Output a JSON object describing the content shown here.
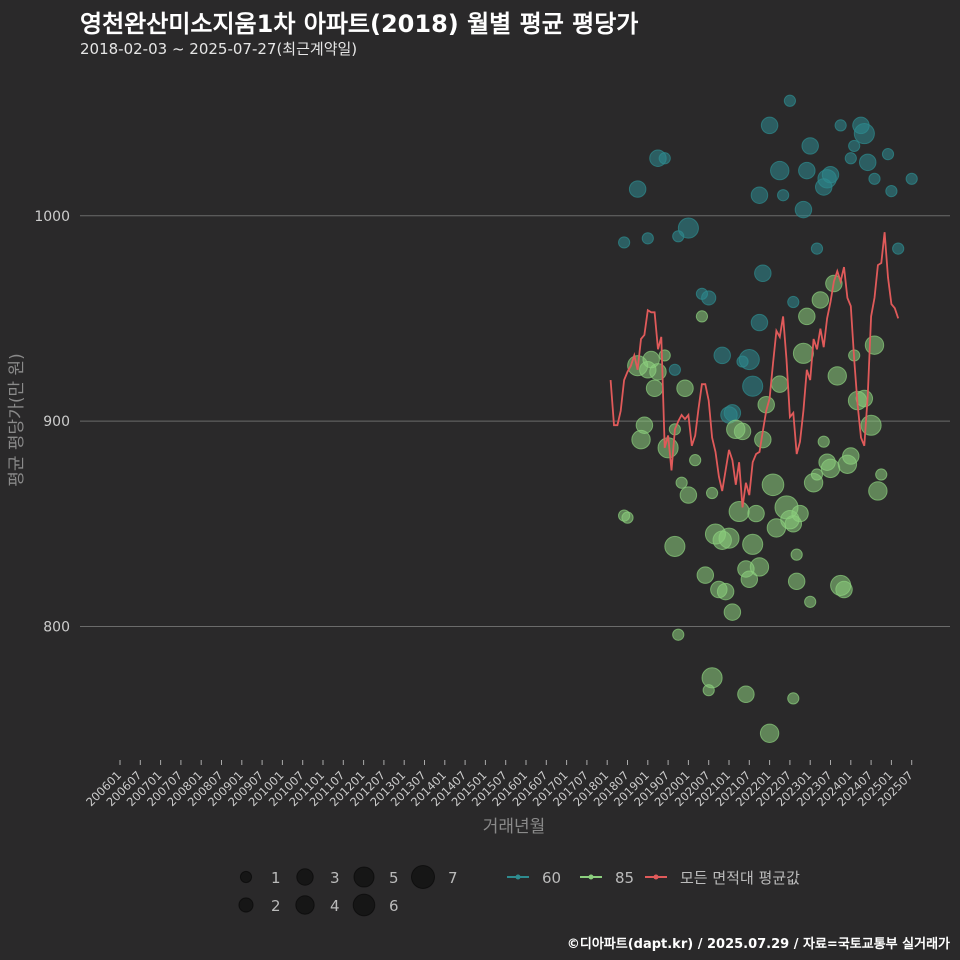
{
  "header": {
    "title": "영천완산미소지움1차 아파트(2018) 월별 평균 평당가",
    "subtitle": "2018-02-03 ~ 2025-07-27(최근계약일)"
  },
  "footer": {
    "caption": "©디아파트(dapt.kr) / 2025.07.29 / 자료=국토교통부 실거래가"
  },
  "colors": {
    "background": "#2a292a",
    "grid": "#6b6b6b",
    "area60": "#2e8b8f",
    "area85": "#8ccf7e",
    "avg_line": "#e05a5a",
    "size_legend": "#111111"
  },
  "chart_data": {
    "type": "scatter",
    "title": "영천완산미소지움1차 아파트(2018) 월별 평균 평당가",
    "xlabel": "거래년월",
    "ylabel": "평균 평당가(만 원)",
    "x_ticks": [
      "200601",
      "200607",
      "200701",
      "200707",
      "200801",
      "200807",
      "200901",
      "200907",
      "201001",
      "201007",
      "201101",
      "201107",
      "201201",
      "201207",
      "201301",
      "201307",
      "201401",
      "201407",
      "201501",
      "201507",
      "201601",
      "201607",
      "201701",
      "201707",
      "201801",
      "201807",
      "201901",
      "201907",
      "202001",
      "202007",
      "202101",
      "202107",
      "202201",
      "202207",
      "202301",
      "202307",
      "202401",
      "202407",
      "202501",
      "202507"
    ],
    "y_ticks": [
      800,
      900,
      1000
    ],
    "ylim": [
      735,
      1070
    ],
    "grid": true,
    "legend": {
      "size_title": "",
      "sizes": [
        "1",
        "2",
        "3",
        "4",
        "5",
        "6",
        "7"
      ],
      "series_labels": [
        "60",
        "85",
        "모든 면적대 평균값"
      ]
    },
    "series": [
      {
        "name": "60",
        "kind": "points",
        "points": [
          [
            "2018-06",
            987,
            1
          ],
          [
            "2018-10",
            1013,
            3
          ],
          [
            "2019-01",
            989,
            1
          ],
          [
            "2019-04",
            1028,
            3
          ],
          [
            "2019-06",
            1028,
            1
          ],
          [
            "2019-10",
            990,
            1
          ],
          [
            "2020-01",
            994,
            5
          ],
          [
            "2020-05",
            962,
            1
          ],
          [
            "2020-07",
            960,
            2
          ],
          [
            "2020-11",
            932,
            3
          ],
          [
            "2021-01",
            903,
            3
          ],
          [
            "2021-02",
            904,
            3
          ],
          [
            "2021-05",
            929,
            1
          ],
          [
            "2021-07",
            930,
            5
          ],
          [
            "2021-08",
            917,
            5
          ],
          [
            "2021-10",
            948,
            3
          ],
          [
            "2021-11",
            972,
            3
          ],
          [
            "2021-10",
            1010,
            3
          ],
          [
            "2022-01",
            1044,
            3
          ],
          [
            "2022-04",
            1022,
            4
          ],
          [
            "2022-05",
            1010,
            1
          ],
          [
            "2022-08",
            958,
            1
          ],
          [
            "2022-11",
            1003,
            3
          ],
          [
            "2022-12",
            1022,
            3
          ],
          [
            "2023-01",
            1034,
            3
          ],
          [
            "2023-03",
            984,
            1
          ],
          [
            "2023-05",
            1014,
            3
          ],
          [
            "2023-06",
            1018,
            4
          ],
          [
            "2023-07",
            1020,
            3
          ],
          [
            "2023-10",
            1044,
            1
          ],
          [
            "2024-01",
            1028,
            1
          ],
          [
            "2024-02",
            1034,
            1
          ],
          [
            "2024-04",
            1044,
            3
          ],
          [
            "2024-05",
            1040,
            5
          ],
          [
            "2024-06",
            1026,
            3
          ],
          [
            "2024-08",
            1018,
            1
          ],
          [
            "2024-12",
            1030,
            1
          ],
          [
            "2025-01",
            1012,
            1
          ],
          [
            "2025-03",
            984,
            1
          ],
          [
            "2025-07",
            1018,
            1
          ],
          [
            "2022-07",
            1056,
            1
          ],
          [
            "2019-09",
            925,
            1
          ]
        ]
      },
      {
        "name": "85",
        "kind": "points",
        "points": [
          [
            "2018-06",
            854,
            1
          ],
          [
            "2018-07",
            853,
            1
          ],
          [
            "2018-10",
            927,
            5
          ],
          [
            "2018-11",
            891,
            4
          ],
          [
            "2018-12",
            898,
            3
          ],
          [
            "2019-01",
            925,
            3
          ],
          [
            "2019-02",
            930,
            3
          ],
          [
            "2019-03",
            916,
            3
          ],
          [
            "2019-04",
            924,
            3
          ],
          [
            "2019-06",
            932,
            1
          ],
          [
            "2019-07",
            887,
            5
          ],
          [
            "2019-09",
            839,
            5
          ],
          [
            "2019-10",
            796,
            1
          ],
          [
            "2019-11",
            870,
            1
          ],
          [
            "2019-12",
            916,
            3
          ],
          [
            "2020-01",
            864,
            3
          ],
          [
            "2020-03",
            881,
            1
          ],
          [
            "2020-05",
            951,
            1
          ],
          [
            "2020-06",
            825,
            3
          ],
          [
            "2020-08",
            865,
            1
          ],
          [
            "2020-09",
            845,
            5
          ],
          [
            "2020-10",
            818,
            3
          ],
          [
            "2020-11",
            842,
            4
          ],
          [
            "2020-12",
            817,
            3
          ],
          [
            "2021-01",
            843,
            5
          ],
          [
            "2021-02",
            807,
            3
          ],
          [
            "2021-03",
            896,
            4
          ],
          [
            "2021-04",
            856,
            5
          ],
          [
            "2021-05",
            895,
            3
          ],
          [
            "2021-06",
            828,
            3
          ],
          [
            "2021-07",
            823,
            3
          ],
          [
            "2021-08",
            840,
            5
          ],
          [
            "2021-09",
            855,
            3
          ],
          [
            "2021-10",
            829,
            4
          ],
          [
            "2021-11",
            891,
            3
          ],
          [
            "2021-12",
            908,
            3
          ],
          [
            "2022-02",
            869,
            6
          ],
          [
            "2022-03",
            848,
            4
          ],
          [
            "2022-04",
            918,
            3
          ],
          [
            "2022-06",
            858,
            7
          ],
          [
            "2022-07",
            852,
            4
          ],
          [
            "2022-08",
            850,
            3
          ],
          [
            "2022-09",
            822,
            3
          ],
          [
            "2022-10",
            855,
            3
          ],
          [
            "2022-11",
            933,
            5
          ],
          [
            "2022-12",
            951,
            3
          ],
          [
            "2023-01",
            812,
            1
          ],
          [
            "2023-02",
            870,
            4
          ],
          [
            "2023-03",
            874,
            1
          ],
          [
            "2023-04",
            959,
            3
          ],
          [
            "2023-05",
            890,
            1
          ],
          [
            "2023-06",
            880,
            3
          ],
          [
            "2023-07",
            877,
            4
          ],
          [
            "2023-08",
            967,
            3
          ],
          [
            "2023-09",
            922,
            4
          ],
          [
            "2023-10",
            820,
            5
          ],
          [
            "2023-11",
            818,
            3
          ],
          [
            "2023-12",
            879,
            4
          ],
          [
            "2024-01",
            883,
            3
          ],
          [
            "2024-02",
            932,
            1
          ],
          [
            "2024-03",
            910,
            4
          ],
          [
            "2024-05",
            911,
            3
          ],
          [
            "2024-07",
            898,
            5
          ],
          [
            "2024-08",
            937,
            4
          ],
          [
            "2024-09",
            866,
            4
          ],
          [
            "2024-10",
            874,
            1
          ],
          [
            "2020-07",
            769,
            1
          ],
          [
            "2020-08",
            775,
            5
          ],
          [
            "2021-06",
            767,
            3
          ],
          [
            "2022-01",
            748,
            4
          ],
          [
            "2022-08",
            765,
            1
          ],
          [
            "2022-09",
            835,
            1
          ],
          [
            "2019-09",
            896,
            1
          ]
        ]
      },
      {
        "name": "모든 면적대 평균값",
        "kind": "line",
        "points": [
          [
            "2018-02",
            920
          ],
          [
            "2018-03",
            898
          ],
          [
            "2018-04",
            898
          ],
          [
            "2018-05",
            905
          ],
          [
            "2018-06",
            920
          ],
          [
            "2018-07",
            924
          ],
          [
            "2018-08",
            927
          ],
          [
            "2018-09",
            932
          ],
          [
            "2018-10",
            925
          ],
          [
            "2018-11",
            940
          ],
          [
            "2018-12",
            942
          ],
          [
            "2019-01",
            954
          ],
          [
            "2019-02",
            953
          ],
          [
            "2019-03",
            953
          ],
          [
            "2019-04",
            935
          ],
          [
            "2019-05",
            941
          ],
          [
            "2019-06",
            887
          ],
          [
            "2019-07",
            893
          ],
          [
            "2019-08",
            876
          ],
          [
            "2019-09",
            896
          ],
          [
            "2019-10",
            900
          ],
          [
            "2019-11",
            903
          ],
          [
            "2019-12",
            901
          ],
          [
            "2020-01",
            903
          ],
          [
            "2020-02",
            888
          ],
          [
            "2020-03",
            893
          ],
          [
            "2020-04",
            906
          ],
          [
            "2020-05",
            918
          ],
          [
            "2020-06",
            918
          ],
          [
            "2020-07",
            910
          ],
          [
            "2020-08",
            892
          ],
          [
            "2020-09",
            885
          ],
          [
            "2020-10",
            873
          ],
          [
            "2020-11",
            866
          ],
          [
            "2020-12",
            876
          ],
          [
            "2021-01",
            886
          ],
          [
            "2021-02",
            881
          ],
          [
            "2021-03",
            869
          ],
          [
            "2021-04",
            880
          ],
          [
            "2021-05",
            858
          ],
          [
            "2021-06",
            870
          ],
          [
            "2021-07",
            864
          ],
          [
            "2021-08",
            880
          ],
          [
            "2021-09",
            884
          ],
          [
            "2021-10",
            885
          ],
          [
            "2021-11",
            895
          ],
          [
            "2021-12",
            905
          ],
          [
            "2022-01",
            911
          ],
          [
            "2022-02",
            928
          ],
          [
            "2022-03",
            944
          ],
          [
            "2022-04",
            941
          ],
          [
            "2022-05",
            951
          ],
          [
            "2022-06",
            930
          ],
          [
            "2022-07",
            902
          ],
          [
            "2022-08",
            904
          ],
          [
            "2022-09",
            884
          ],
          [
            "2022-10",
            890
          ],
          [
            "2022-11",
            905
          ],
          [
            "2022-12",
            925
          ],
          [
            "2023-01",
            920
          ],
          [
            "2023-02",
            940
          ],
          [
            "2023-03",
            935
          ],
          [
            "2023-04",
            945
          ],
          [
            "2023-05",
            936
          ],
          [
            "2023-06",
            950
          ],
          [
            "2023-07",
            958
          ],
          [
            "2023-08",
            968
          ],
          [
            "2023-09",
            973
          ],
          [
            "2023-10",
            968
          ],
          [
            "2023-11",
            975
          ],
          [
            "2023-12",
            960
          ],
          [
            "2024-01",
            956
          ],
          [
            "2024-02",
            930
          ],
          [
            "2024-03",
            908
          ],
          [
            "2024-04",
            892
          ],
          [
            "2024-05",
            888
          ],
          [
            "2024-06",
            912
          ],
          [
            "2024-07",
            951
          ],
          [
            "2024-08",
            960
          ],
          [
            "2024-09",
            976
          ],
          [
            "2024-10",
            977
          ],
          [
            "2024-11",
            992
          ],
          [
            "2024-12",
            970
          ],
          [
            "2025-01",
            957
          ],
          [
            "2025-02",
            955
          ],
          [
            "2025-03",
            950
          ]
        ]
      }
    ]
  }
}
